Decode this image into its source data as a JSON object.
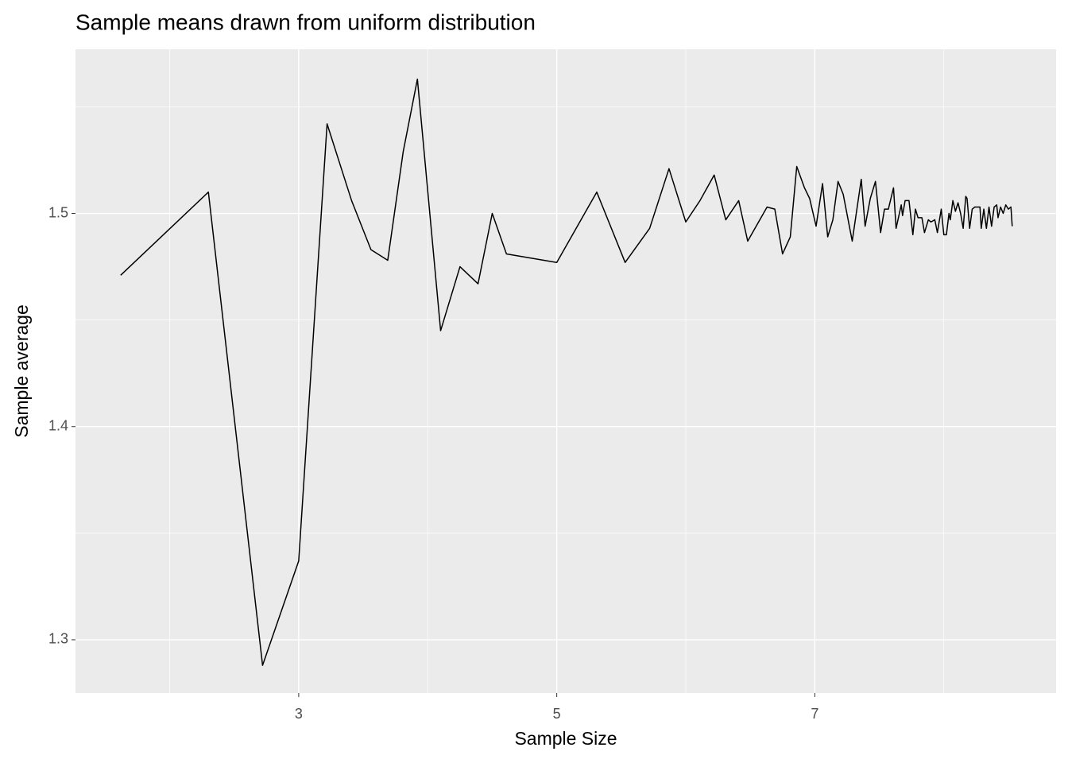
{
  "chart_data": {
    "type": "line",
    "title": "Sample means drawn from uniform distribution",
    "x_label": "Sample Size",
    "y_label": "Sample average",
    "xlim": [
      1.27,
      8.87
    ],
    "ylim": [
      1.275,
      1.577
    ],
    "xticks": [
      3,
      5,
      7
    ],
    "yticks": [
      1.3,
      1.4,
      1.5
    ],
    "x_minor_ticks": [
      2,
      4,
      6,
      8
    ],
    "y_minor_ticks": [
      1.35,
      1.45,
      1.55
    ],
    "grid": true,
    "x": [
      1.62,
      2.3,
      2.72,
      3.0,
      3.22,
      3.41,
      3.56,
      3.69,
      3.81,
      3.92,
      4.1,
      4.25,
      4.39,
      4.5,
      4.61,
      5.0,
      5.31,
      5.53,
      5.72,
      5.87,
      6.0,
      6.11,
      6.22,
      6.31,
      6.41,
      6.48,
      6.63,
      6.69,
      6.75,
      6.81,
      6.86,
      6.92,
      6.96,
      7.01,
      7.06,
      7.1,
      7.14,
      7.18,
      7.22,
      7.29,
      7.36,
      7.39,
      7.43,
      7.47,
      7.51,
      7.54,
      7.57,
      7.61,
      7.63,
      7.67,
      7.68,
      7.7,
      7.73,
      7.76,
      7.78,
      7.8,
      7.83,
      7.85,
      7.88,
      7.9,
      7.93,
      7.95,
      7.98,
      8.0,
      8.02,
      8.04,
      8.05,
      8.07,
      8.09,
      8.11,
      8.13,
      8.15,
      8.17,
      8.18,
      8.2,
      8.22,
      8.24,
      8.26,
      8.28,
      8.29,
      8.31,
      8.33,
      8.35,
      8.37,
      8.39,
      8.41,
      8.42,
      8.44,
      8.46,
      8.48,
      8.5,
      8.52,
      8.53
    ],
    "series": [
      {
        "color": "#000000",
        "values": [
          1.471,
          1.51,
          1.288,
          1.337,
          1.542,
          1.506,
          1.483,
          1.478,
          1.529,
          1.563,
          1.445,
          1.475,
          1.467,
          1.5,
          1.481,
          1.477,
          1.51,
          1.477,
          1.493,
          1.521,
          1.496,
          1.506,
          1.518,
          1.497,
          1.506,
          1.487,
          1.503,
          1.502,
          1.481,
          1.489,
          1.522,
          1.512,
          1.507,
          1.494,
          1.514,
          1.489,
          1.497,
          1.515,
          1.509,
          1.487,
          1.516,
          1.494,
          1.507,
          1.515,
          1.491,
          1.502,
          1.502,
          1.512,
          1.493,
          1.504,
          1.499,
          1.506,
          1.506,
          1.49,
          1.502,
          1.498,
          1.498,
          1.491,
          1.497,
          1.496,
          1.497,
          1.491,
          1.502,
          1.49,
          1.49,
          1.5,
          1.497,
          1.506,
          1.501,
          1.505,
          1.5,
          1.493,
          1.508,
          1.507,
          1.493,
          1.502,
          1.503,
          1.503,
          1.503,
          1.493,
          1.502,
          1.493,
          1.503,
          1.494,
          1.503,
          1.504,
          1.498,
          1.503,
          1.5,
          1.504,
          1.502,
          1.503,
          1.494
        ]
      }
    ]
  }
}
